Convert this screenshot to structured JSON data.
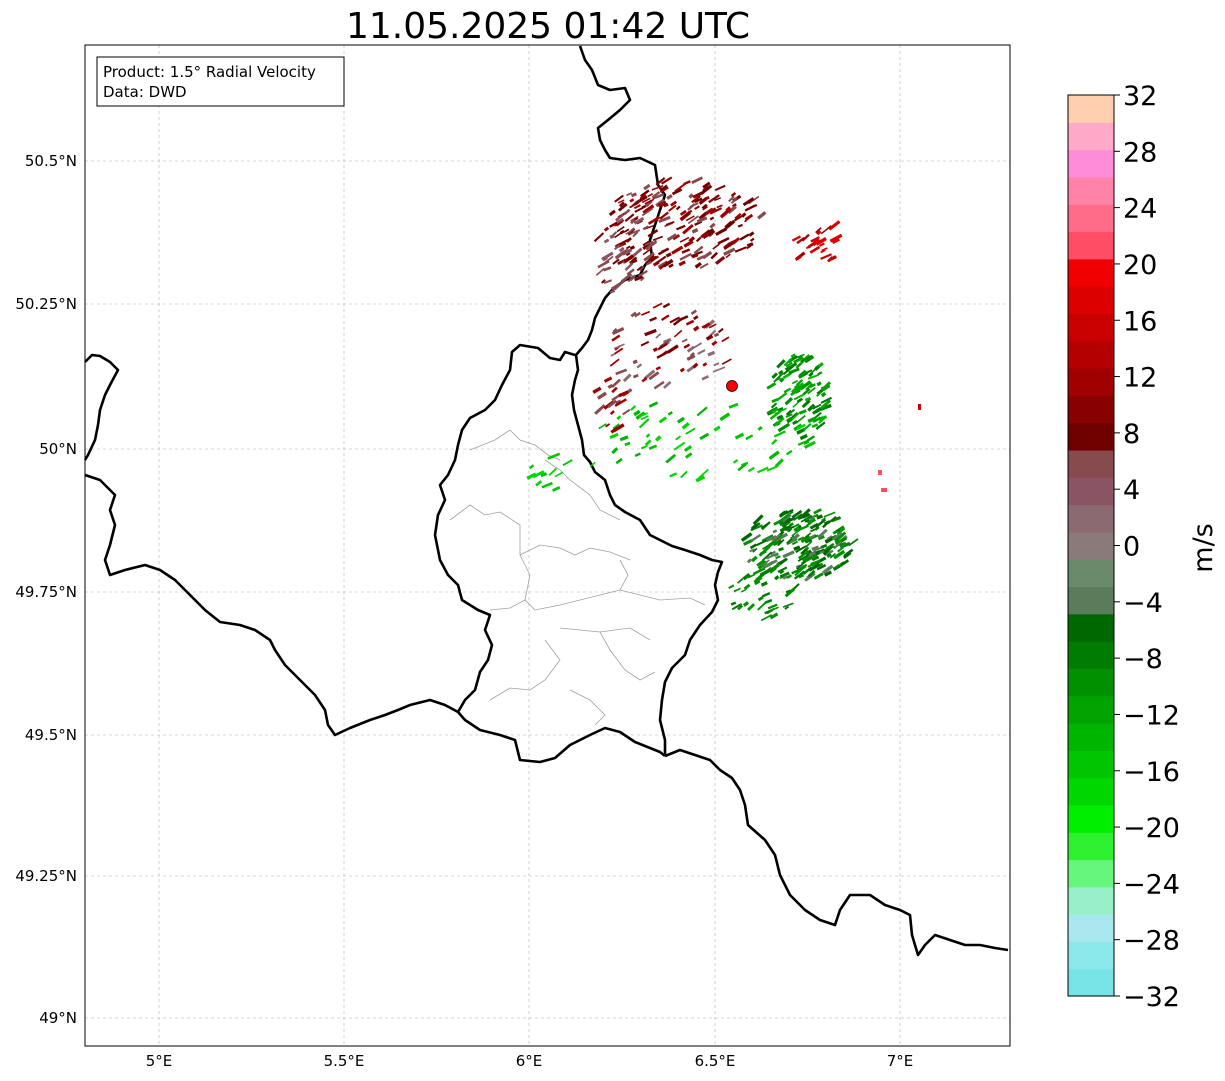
{
  "title": "11.05.2025 01:42 UTC",
  "info_box": {
    "line1": "Product: 1.5° Radial Velocity",
    "line2": "Data: DWD"
  },
  "axes": {
    "x_ticks": [
      "5°E",
      "5.5°E",
      "6°E",
      "6.5°E",
      "7°E"
    ],
    "y_ticks": [
      "50.5°N",
      "50.25°N",
      "50°N",
      "49.75°N",
      "49.5°N",
      "49.25°N",
      "49°N"
    ]
  },
  "colorbar": {
    "label": "m/s",
    "range": [
      -32,
      32
    ],
    "ticks": [
      "−32",
      "−28",
      "−24",
      "−20",
      "−16",
      "−12",
      "−8",
      "−4",
      "0",
      "4",
      "8",
      "12",
      "16",
      "20",
      "24",
      "28",
      "32"
    ],
    "colors": [
      "#77e3e6",
      "#8ae8ea",
      "#a8e7ee",
      "#98f0c8",
      "#66f57d",
      "#2ef22f",
      "#00ee00",
      "#00d700",
      "#00c500",
      "#00b500",
      "#00a300",
      "#009000",
      "#007d00",
      "#006800",
      "#5a7c5a",
      "#6b8a6b",
      "#8a7a79",
      "#8c6a72",
      "#8a5465",
      "#874a4d",
      "#6e0000",
      "#880000",
      "#a00000",
      "#b40000",
      "#c80000",
      "#dc0000",
      "#f00000",
      "#ff4d66",
      "#ff6c88",
      "#ff83a8",
      "#ff8cd8",
      "#ffaac8",
      "#ffcfb0"
    ]
  },
  "map": {
    "radar_site": {
      "lon": 6.548,
      "lat": 50.112
    },
    "extent": {
      "lon": [
        4.8,
        7.3
      ],
      "lat": [
        48.95,
        50.7
      ]
    }
  }
}
